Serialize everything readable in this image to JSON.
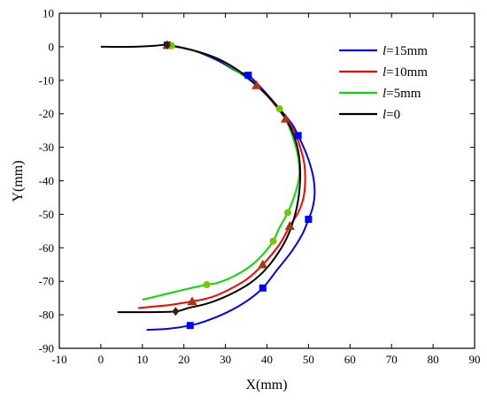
{
  "chart_data": {
    "type": "line",
    "xlabel": "X(mm)",
    "ylabel": "Y(mm)",
    "xlim": [
      -10,
      90
    ],
    "ylim": [
      -90,
      10
    ],
    "xticks": [
      -10,
      0,
      10,
      20,
      30,
      40,
      50,
      60,
      70,
      80,
      90
    ],
    "yticks": [
      10,
      0,
      -10,
      -20,
      -30,
      -40,
      -50,
      -60,
      -70,
      -80,
      -90
    ],
    "grid": false,
    "legend_position": "top-right",
    "series": [
      {
        "name": "l=15mm",
        "legend_var": "l",
        "legend_rest": "=15mm",
        "color": "#0000ff",
        "marker": "square",
        "points": [
          [
            16,
            0.5
          ],
          [
            22,
            -1
          ],
          [
            28,
            -4
          ],
          [
            33,
            -7.5
          ],
          [
            35.5,
            -8.5
          ],
          [
            39.5,
            -13.5
          ],
          [
            43,
            -18.5
          ],
          [
            46,
            -23
          ],
          [
            47.5,
            -26.5
          ],
          [
            49.5,
            -32
          ],
          [
            51,
            -38
          ],
          [
            51.5,
            -43.5
          ],
          [
            51,
            -48
          ],
          [
            50,
            -51.5
          ],
          [
            48.5,
            -56
          ],
          [
            46,
            -61
          ],
          [
            42.5,
            -66.5
          ],
          [
            39,
            -72
          ],
          [
            35,
            -76
          ],
          [
            30,
            -79.5
          ],
          [
            25,
            -82
          ],
          [
            21.5,
            -83.2
          ],
          [
            16,
            -84.2
          ],
          [
            11,
            -84.5
          ]
        ],
        "markers": [
          [
            16,
            0.5
          ],
          [
            35.5,
            -8.5
          ],
          [
            47.5,
            -26.5
          ],
          [
            50,
            -51.5
          ],
          [
            39,
            -72
          ],
          [
            21.5,
            -83.2
          ]
        ]
      },
      {
        "name": "l=10mm",
        "legend_var": "l",
        "legend_rest": "=10mm",
        "color": "#ff0000",
        "marker": "triangle",
        "points": [
          [
            16,
            0.5
          ],
          [
            22,
            -1
          ],
          [
            28,
            -3.5
          ],
          [
            33,
            -7
          ],
          [
            37.5,
            -11.5
          ],
          [
            41,
            -16
          ],
          [
            44.5,
            -21.5
          ],
          [
            46.5,
            -25
          ],
          [
            48,
            -30
          ],
          [
            49,
            -35
          ],
          [
            49.2,
            -40
          ],
          [
            48.8,
            -45
          ],
          [
            47.5,
            -49.5
          ],
          [
            45.5,
            -53.5
          ],
          [
            43,
            -59
          ],
          [
            39,
            -65
          ],
          [
            35,
            -69.5
          ],
          [
            30,
            -73
          ],
          [
            26,
            -75
          ],
          [
            22,
            -76
          ],
          [
            17,
            -77
          ],
          [
            13,
            -77.5
          ],
          [
            9,
            -78
          ]
        ],
        "markers": [
          [
            16,
            0.5
          ],
          [
            37.5,
            -11.5
          ],
          [
            44.5,
            -21.5
          ],
          [
            45.5,
            -53.5
          ],
          [
            39,
            -65
          ],
          [
            22,
            -76
          ]
        ]
      },
      {
        "name": "l=5mm",
        "legend_var": "l",
        "legend_rest": "=5mm",
        "color": "#00dd00",
        "marker": "circle",
        "points": [
          [
            15,
            0.5
          ],
          [
            17,
            0.3
          ],
          [
            22,
            -1
          ],
          [
            28,
            -3.5
          ],
          [
            33,
            -7.5
          ],
          [
            37,
            -11
          ],
          [
            40,
            -14.5
          ],
          [
            43,
            -18.5
          ],
          [
            45,
            -23
          ],
          [
            46.5,
            -28
          ],
          [
            47.5,
            -33
          ],
          [
            47.8,
            -38
          ],
          [
            47,
            -43
          ],
          [
            45,
            -49.5
          ],
          [
            43,
            -54
          ],
          [
            41.5,
            -58
          ],
          [
            39,
            -62
          ],
          [
            36,
            -65.5
          ],
          [
            32,
            -68.5
          ],
          [
            28,
            -70.5
          ],
          [
            25.5,
            -71
          ],
          [
            20,
            -72.5
          ],
          [
            15,
            -74
          ],
          [
            10,
            -75.5
          ]
        ],
        "markers": [
          [
            17,
            0.3
          ],
          [
            43,
            -18.5
          ],
          [
            45,
            -49.5
          ],
          [
            41.5,
            -58
          ],
          [
            25.5,
            -71
          ]
        ]
      },
      {
        "name": "l=0",
        "legend_var": "l",
        "legend_rest": "=0",
        "color": "#000000",
        "marker": "diamond",
        "points": [
          [
            0,
            0
          ],
          [
            8,
            0
          ],
          [
            13,
            0.3
          ],
          [
            16,
            0.5
          ],
          [
            22,
            -1
          ],
          [
            28,
            -3.5
          ],
          [
            33,
            -7
          ],
          [
            37,
            -11
          ],
          [
            40.5,
            -15
          ],
          [
            43.5,
            -19.5
          ],
          [
            46,
            -25
          ],
          [
            47.5,
            -31
          ],
          [
            48,
            -37
          ],
          [
            47.8,
            -43
          ],
          [
            47,
            -49
          ],
          [
            45.5,
            -55
          ],
          [
            43.5,
            -60
          ],
          [
            40,
            -66
          ],
          [
            36,
            -70.5
          ],
          [
            31,
            -74
          ],
          [
            26,
            -76.5
          ],
          [
            21,
            -78
          ],
          [
            18,
            -79
          ],
          [
            12,
            -79.2
          ],
          [
            6,
            -79.2
          ],
          [
            4,
            -79.2
          ]
        ],
        "markers": [
          [
            16,
            0.5
          ],
          [
            18,
            -79
          ]
        ]
      }
    ]
  }
}
